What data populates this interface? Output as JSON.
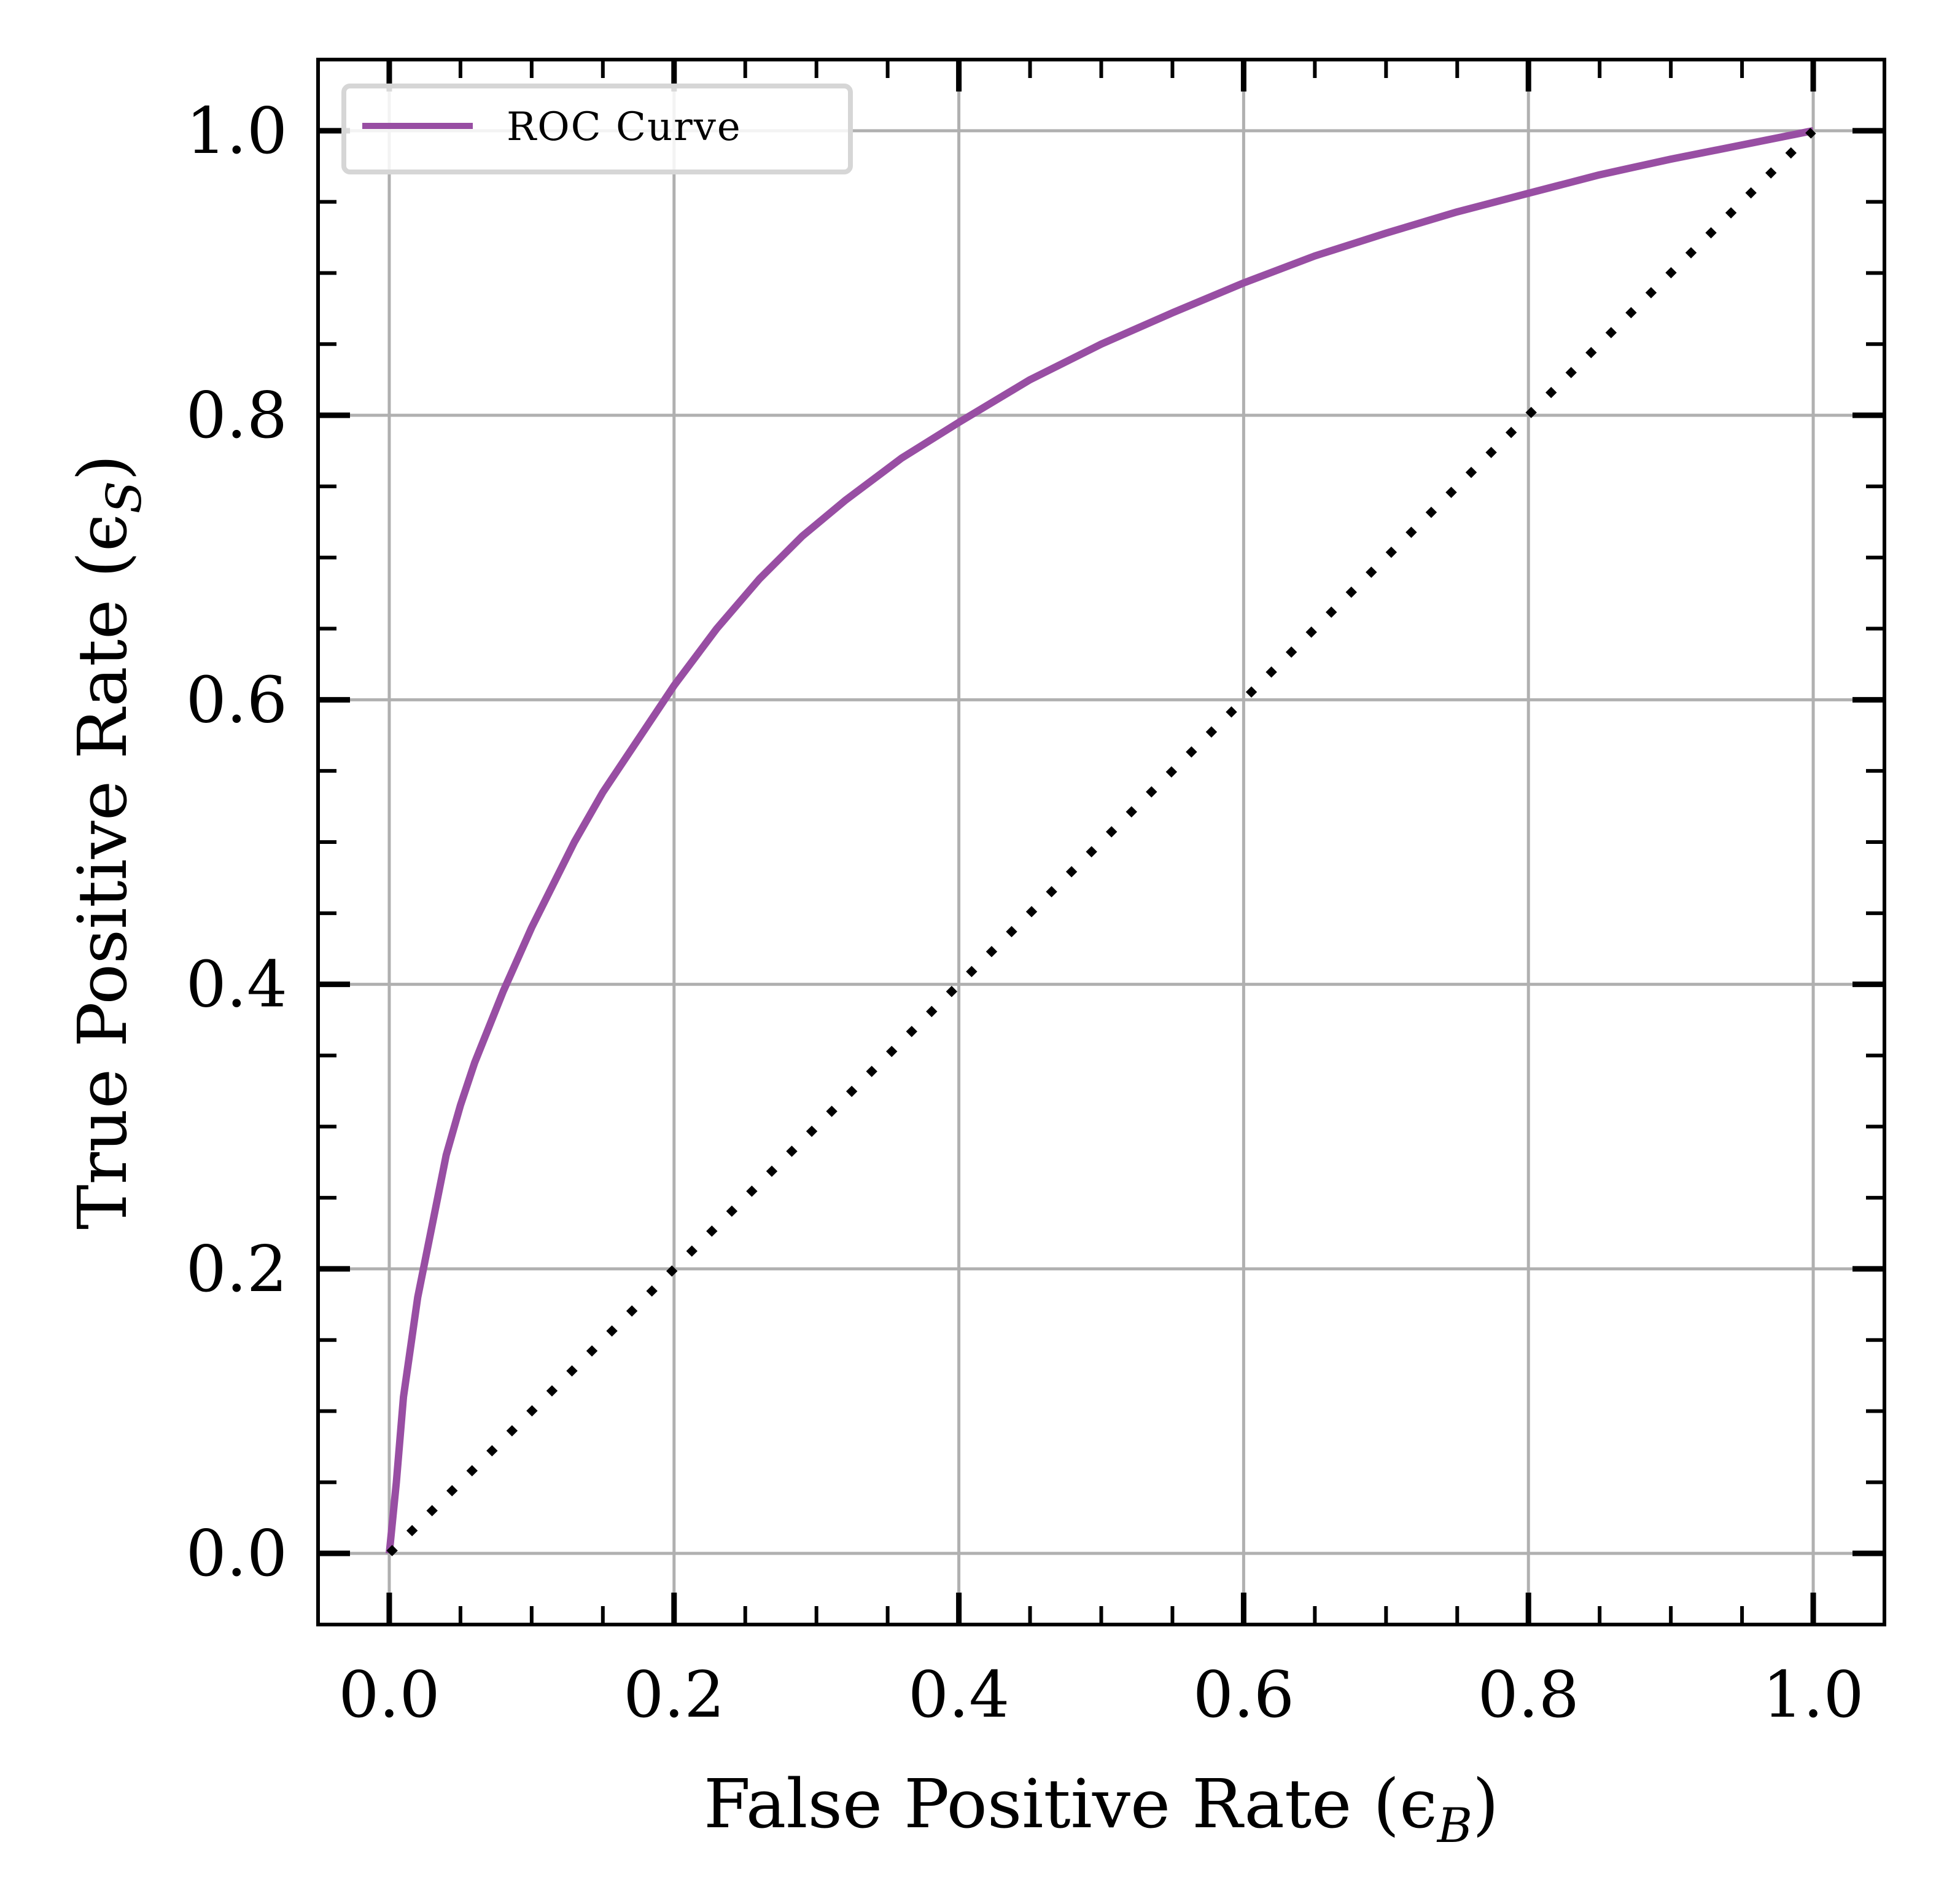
{
  "chart_data": {
    "type": "line",
    "title": "",
    "xlabel": "False Positive Rate (ϵ",
    "xlabel_sub": "B",
    "xlabel_close": ")",
    "ylabel": "True Positive Rate (ϵ",
    "ylabel_sub": "S",
    "ylabel_close": ")",
    "xlim": [
      -0.05,
      1.05
    ],
    "ylim": [
      -0.05,
      1.05
    ],
    "xticks": [
      0.0,
      0.2,
      0.4,
      0.6,
      0.8,
      1.0
    ],
    "xtick_labels": [
      "0.0",
      "0.2",
      "0.4",
      "0.6",
      "0.8",
      "1.0"
    ],
    "yticks": [
      0.0,
      0.2,
      0.4,
      0.6,
      0.8,
      1.0
    ],
    "ytick_labels": [
      "0.0",
      "0.2",
      "0.4",
      "0.6",
      "0.8",
      "1.0"
    ],
    "minor_tick_step": 0.05,
    "grid": true,
    "legend_position": "top-left",
    "series": [
      {
        "name": "ROC Curve",
        "style": "solid",
        "color": "#984ea3",
        "x": [
          0.0,
          0.005,
          0.01,
          0.02,
          0.03,
          0.04,
          0.05,
          0.06,
          0.07,
          0.08,
          0.1,
          0.13,
          0.15,
          0.18,
          0.2,
          0.23,
          0.26,
          0.29,
          0.32,
          0.36,
          0.4,
          0.45,
          0.5,
          0.55,
          0.6,
          0.65,
          0.7,
          0.75,
          0.8,
          0.85,
          0.9,
          0.95,
          1.0
        ],
        "y": [
          0.0,
          0.05,
          0.11,
          0.18,
          0.23,
          0.28,
          0.315,
          0.345,
          0.37,
          0.395,
          0.44,
          0.5,
          0.535,
          0.58,
          0.61,
          0.65,
          0.685,
          0.715,
          0.74,
          0.77,
          0.795,
          0.825,
          0.85,
          0.872,
          0.893,
          0.912,
          0.928,
          0.943,
          0.956,
          0.969,
          0.98,
          0.99,
          1.0
        ]
      },
      {
        "name": "",
        "style": "dotted",
        "color": "#000000",
        "x": [
          0.0,
          1.0
        ],
        "y": [
          0.0,
          1.0
        ]
      }
    ],
    "legend": [
      {
        "label": "ROC Curve",
        "color": "#984ea3"
      }
    ]
  }
}
